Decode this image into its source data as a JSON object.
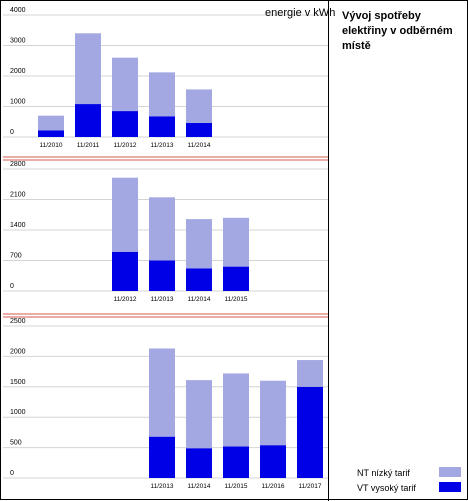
{
  "header": {
    "unit": "energie v kWh",
    "title": "Vývoj spotřeby elektřiny v odběrném místě"
  },
  "legend": {
    "nt_label": "NT nízký tarif",
    "vt_label": "VT vysoký tarif"
  },
  "colors": {
    "nt": "#a3a8e2",
    "vt": "#0000e6",
    "separator_red": "#d65a4e"
  },
  "chart_data": [
    {
      "type": "bar",
      "stacked": true,
      "categories": [
        "11/2010",
        "11/2011",
        "11/2012",
        "11/2013",
        "11/2014"
      ],
      "ylim": [
        0,
        4000
      ],
      "yticks": [
        0,
        1000,
        2000,
        3000,
        4000
      ],
      "series": [
        {
          "name": "VT vysoký tarif",
          "values": [
            220,
            1080,
            850,
            680,
            460
          ]
        },
        {
          "name": "NT nízký tarif",
          "values": [
            480,
            2320,
            1750,
            1440,
            1100
          ]
        }
      ]
    },
    {
      "type": "bar",
      "stacked": true,
      "categories": [
        "11/2012",
        "11/2013",
        "11/2014",
        "11/2015"
      ],
      "ylim": [
        0,
        2800
      ],
      "yticks": [
        0,
        700,
        1400,
        2100,
        2800
      ],
      "series": [
        {
          "name": "VT vysoký tarif",
          "values": [
            900,
            700,
            520,
            560
          ]
        },
        {
          "name": "NT nízký tarif",
          "values": [
            1700,
            1450,
            1130,
            1120
          ]
        }
      ]
    },
    {
      "type": "bar",
      "stacked": true,
      "categories": [
        "11/2013",
        "11/2014",
        "11/2015",
        "11/2016",
        "11/2017"
      ],
      "ylim": [
        0,
        2500
      ],
      "yticks": [
        0,
        500,
        1000,
        1500,
        2000,
        2500
      ],
      "series": [
        {
          "name": "VT vysoký tarif",
          "values": [
            680,
            490,
            520,
            540,
            1500
          ]
        },
        {
          "name": "NT nízký tarif",
          "values": [
            1450,
            1120,
            1200,
            1060,
            440
          ]
        }
      ]
    }
  ]
}
